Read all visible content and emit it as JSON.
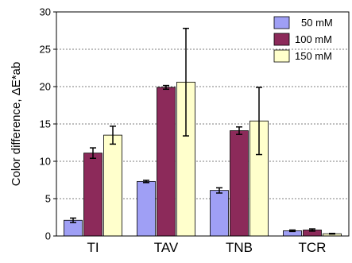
{
  "chart_data": {
    "type": "bar",
    "categories": [
      "TI",
      "TAV",
      "TNB",
      "TCR"
    ],
    "series": [
      {
        "name": "50 mM",
        "color": "#9f9ff5",
        "values": [
          2.1,
          7.3,
          6.1,
          0.7
        ],
        "errors": [
          0.3,
          0.15,
          0.35,
          0.1
        ]
      },
      {
        "name": "100 mM",
        "color": "#8c2a5a",
        "values": [
          11.1,
          19.9,
          14.1,
          0.8
        ],
        "errors": [
          0.7,
          0.25,
          0.5,
          0.15
        ]
      },
      {
        "name": "150 mM",
        "color": "#ffffcc",
        "values": [
          13.5,
          20.6,
          15.4,
          0.3
        ],
        "errors": [
          1.2,
          7.2,
          4.5,
          0.05
        ]
      }
    ],
    "ylabel": "Color difference, ΔE*ab",
    "ylim": [
      0,
      30
    ],
    "yticks": [
      0,
      5,
      10,
      15,
      20,
      25,
      30
    ],
    "grid": "dashed horizontal",
    "legend_position": "top-right"
  }
}
